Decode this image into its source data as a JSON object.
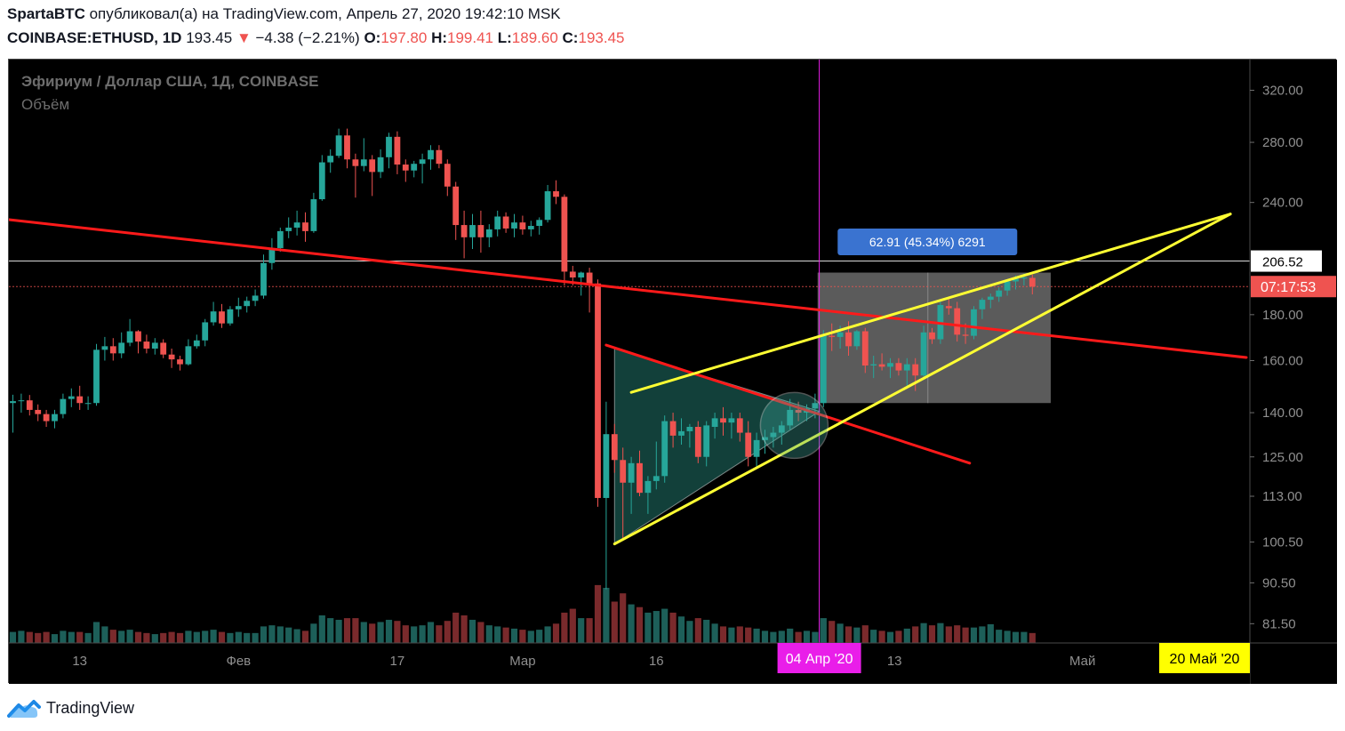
{
  "header": {
    "author": "SpartaBTC",
    "published_text": "опубликовал(а) на TradingView.com, Апрель 27, 2020 19:42:10 MSK",
    "symbol": "COINBASE:ETHUSD, 1D",
    "last": "193.45",
    "change_arrow": "▼",
    "change": "−4.38 (−2.21%)",
    "o_label": "O:",
    "o": "197.80",
    "h_label": "H:",
    "h": "199.41",
    "l_label": "L:",
    "l": "189.60",
    "c_label": "C:",
    "c": "193.45"
  },
  "legend": {
    "title": "Эфириум / Доллар США, 1Д, COINBASE",
    "volume": "Объём"
  },
  "footer": {
    "brand": "TradingView"
  },
  "colors": {
    "up": "#26a69a",
    "down": "#ef5350",
    "vol_up": "#1d5f59",
    "vol_down": "#7a2a2c",
    "trend_red": "#ff1a1a",
    "trend_yellow": "#ffff33",
    "box": "#6b6b6b",
    "date_mark": "#e91ee9",
    "measure": "#3a73d0"
  },
  "chart_data": {
    "type": "candlestick",
    "symbol": "COINBASE:ETHUSD",
    "interval": "1D",
    "y_scale": "log",
    "ylim": [
      79,
      330
    ],
    "y_ticks": [
      "320.00",
      "280.00",
      "240.00",
      "206.52",
      "180.00",
      "160.00",
      "140.00",
      "125.00",
      "113.00",
      "100.50",
      "90.50",
      "81.50"
    ],
    "x_ticks": [
      "13",
      "Фев",
      "17",
      "Мар",
      "16",
      "04 Апр '20",
      "13",
      "Май",
      "20 Май '20"
    ],
    "current_price_label": "07:17:53",
    "measure_label": "62.91 (45.34%) 6291",
    "levels": {
      "horizontal_line": 206.52,
      "last_price": 193.45
    },
    "start_date": "2020-01-05",
    "candles": [
      [
        143.5,
        146.6,
        133.0,
        144.2,
        0.2
      ],
      [
        144.2,
        147.0,
        140.0,
        144.5,
        0.22
      ],
      [
        144.5,
        146.5,
        139.0,
        141.0,
        0.2
      ],
      [
        141.0,
        143.0,
        137.0,
        139.5,
        0.18
      ],
      [
        139.5,
        141.0,
        135.0,
        137.0,
        0.2
      ],
      [
        137.0,
        141.0,
        134.5,
        139.5,
        0.16
      ],
      [
        139.5,
        147.0,
        138.0,
        145.0,
        0.22
      ],
      [
        145.0,
        149.0,
        142.0,
        146.0,
        0.2
      ],
      [
        146.0,
        150.0,
        141.0,
        143.5,
        0.2
      ],
      [
        143.5,
        146.0,
        141.0,
        143.5,
        0.18
      ],
      [
        143.5,
        167.0,
        142.5,
        164.5,
        0.38
      ],
      [
        164.5,
        170.0,
        160.0,
        166.0,
        0.3
      ],
      [
        166.0,
        169.5,
        160.0,
        163.0,
        0.24
      ],
      [
        163.0,
        172.0,
        161.0,
        167.5,
        0.22
      ],
      [
        167.5,
        178.0,
        166.0,
        172.5,
        0.24
      ],
      [
        172.5,
        173.0,
        163.0,
        168.0,
        0.2
      ],
      [
        168.0,
        171.0,
        163.0,
        165.0,
        0.18
      ],
      [
        165.0,
        169.5,
        162.5,
        167.5,
        0.16
      ],
      [
        167.5,
        169.0,
        161.0,
        162.5,
        0.18
      ],
      [
        162.5,
        165.0,
        157.0,
        160.5,
        0.2
      ],
      [
        160.5,
        162.0,
        156.0,
        158.5,
        0.18
      ],
      [
        158.5,
        169.0,
        158.0,
        166.0,
        0.22
      ],
      [
        166.0,
        171.0,
        165.0,
        168.5,
        0.2
      ],
      [
        168.5,
        178.0,
        166.0,
        176.5,
        0.22
      ],
      [
        176.5,
        186.0,
        175.0,
        181.5,
        0.24
      ],
      [
        181.5,
        185.0,
        174.0,
        176.0,
        0.2
      ],
      [
        176.0,
        184.0,
        175.0,
        182.5,
        0.18
      ],
      [
        182.5,
        188.0,
        179.0,
        184.0,
        0.2
      ],
      [
        184.0,
        188.5,
        181.0,
        186.5,
        0.18
      ],
      [
        186.5,
        192.0,
        184.0,
        189.0,
        0.18
      ],
      [
        189.0,
        210.0,
        187.5,
        205.5,
        0.3
      ],
      [
        205.5,
        219.0,
        202.0,
        213.5,
        0.32
      ],
      [
        213.5,
        225.0,
        211.5,
        223.0,
        0.3
      ],
      [
        223.0,
        231.0,
        219.0,
        225.0,
        0.28
      ],
      [
        225.0,
        235.0,
        220.5,
        228.0,
        0.25
      ],
      [
        228.0,
        234.0,
        217.0,
        223.0,
        0.22
      ],
      [
        223.0,
        246.0,
        222.0,
        242.0,
        0.35
      ],
      [
        242.0,
        271.0,
        241.0,
        266.0,
        0.5
      ],
      [
        266.0,
        275.0,
        259.0,
        270.5,
        0.45
      ],
      [
        270.5,
        290.0,
        269.0,
        285.0,
        0.42
      ],
      [
        285.0,
        290.0,
        262.0,
        268.0,
        0.45
      ],
      [
        268.0,
        272.0,
        243.0,
        263.5,
        0.45
      ],
      [
        263.5,
        283.0,
        260.0,
        268.0,
        0.38
      ],
      [
        268.0,
        271.0,
        244.0,
        259.5,
        0.35
      ],
      [
        259.5,
        275.0,
        255.5,
        269.5,
        0.38
      ],
      [
        269.5,
        287.0,
        262.0,
        284.0,
        0.42
      ],
      [
        284.0,
        288.0,
        258.0,
        264.5,
        0.4
      ],
      [
        264.5,
        268.0,
        253.0,
        260.5,
        0.32
      ],
      [
        260.5,
        267.0,
        256.0,
        265.0,
        0.3
      ],
      [
        265.0,
        272.0,
        252.0,
        268.0,
        0.32
      ],
      [
        268.0,
        278.0,
        261.0,
        274.5,
        0.38
      ],
      [
        274.5,
        278.0,
        262.0,
        265.0,
        0.32
      ],
      [
        265.0,
        268.0,
        244.0,
        250.0,
        0.4
      ],
      [
        250.0,
        253.0,
        218.0,
        226.5,
        0.55
      ],
      [
        226.5,
        235.0,
        208.0,
        219.5,
        0.5
      ],
      [
        219.5,
        233.0,
        213.0,
        226.5,
        0.42
      ],
      [
        226.5,
        235.0,
        211.0,
        219.5,
        0.38
      ],
      [
        219.5,
        227.0,
        214.0,
        224.0,
        0.32
      ],
      [
        224.0,
        235.0,
        220.0,
        231.5,
        0.3
      ],
      [
        231.5,
        234.0,
        222.0,
        224.5,
        0.28
      ],
      [
        224.5,
        233.0,
        219.5,
        228.0,
        0.26
      ],
      [
        228.0,
        232.0,
        221.0,
        224.0,
        0.24
      ],
      [
        224.0,
        229.0,
        220.0,
        226.0,
        0.22
      ],
      [
        226.0,
        231.0,
        221.0,
        229.5,
        0.24
      ],
      [
        229.5,
        251.0,
        228.0,
        247.0,
        0.3
      ],
      [
        247.0,
        254.0,
        239.0,
        243.5,
        0.35
      ],
      [
        243.5,
        245.0,
        194.0,
        201.0,
        0.55
      ],
      [
        201.0,
        204.0,
        194.0,
        198.0,
        0.62
      ],
      [
        198.0,
        201.0,
        189.0,
        200.5,
        0.45
      ],
      [
        200.5,
        203.0,
        181.0,
        195.0,
        0.45
      ],
      [
        195.0,
        197.0,
        110.0,
        112.5,
        1.05
      ],
      [
        112.5,
        144.0,
        89.0,
        132.5,
        1.0
      ],
      [
        132.5,
        136.0,
        120.0,
        124.0,
        0.75
      ],
      [
        124.0,
        128.0,
        101.0,
        117.0,
        0.9
      ],
      [
        117.0,
        125.0,
        108.0,
        123.0,
        0.7
      ],
      [
        123.0,
        127.0,
        113.0,
        114.0,
        0.65
      ],
      [
        114.0,
        119.0,
        108.0,
        117.5,
        0.55
      ],
      [
        117.5,
        130.0,
        115.0,
        119.0,
        0.58
      ],
      [
        119.0,
        139.0,
        117.0,
        137.0,
        0.62
      ],
      [
        137.0,
        140.0,
        128.0,
        132.0,
        0.55
      ],
      [
        132.0,
        138.0,
        129.0,
        133.5,
        0.48
      ],
      [
        133.5,
        136.0,
        128.0,
        135.0,
        0.4
      ],
      [
        135.0,
        137.0,
        123.0,
        125.0,
        0.45
      ],
      [
        125.0,
        137.0,
        122.0,
        135.5,
        0.42
      ],
      [
        135.0,
        140.0,
        131.0,
        138.0,
        0.35
      ],
      [
        138.0,
        142.0,
        132.0,
        136.5,
        0.3
      ],
      [
        136.5,
        140.0,
        131.0,
        138.0,
        0.28
      ],
      [
        138.0,
        140.0,
        130.0,
        133.0,
        0.3
      ],
      [
        133.0,
        137.0,
        122.0,
        125.0,
        0.28
      ],
      [
        125.0,
        133.0,
        122.0,
        130.5,
        0.26
      ],
      [
        130.5,
        134.0,
        126.0,
        131.5,
        0.22
      ],
      [
        131.5,
        135.0,
        128.0,
        133.0,
        0.2
      ],
      [
        133.0,
        137.0,
        129.0,
        135.5,
        0.22
      ],
      [
        135.5,
        145.0,
        134.0,
        141.0,
        0.26
      ],
      [
        141.0,
        144.0,
        137.0,
        140.0,
        0.2
      ],
      [
        140.0,
        143.0,
        137.0,
        141.5,
        0.22
      ],
      [
        141.5,
        147.0,
        138.0,
        143.5,
        0.2
      ],
      [
        143.5,
        173.0,
        142.0,
        170.5,
        0.45
      ],
      [
        170.5,
        176.0,
        164.0,
        170.0,
        0.4
      ],
      [
        170.0,
        175.0,
        165.0,
        172.0,
        0.35
      ],
      [
        172.0,
        177.0,
        162.0,
        166.0,
        0.3
      ],
      [
        166.0,
        173.0,
        164.5,
        172.5,
        0.28
      ],
      [
        172.5,
        174.0,
        155.0,
        158.0,
        0.32
      ],
      [
        158.0,
        162.0,
        153.0,
        158.5,
        0.24
      ],
      [
        158.5,
        163.0,
        156.0,
        157.5,
        0.22
      ],
      [
        157.5,
        161.0,
        153.0,
        159.0,
        0.2
      ],
      [
        159.0,
        161.0,
        154.0,
        156.0,
        0.22
      ],
      [
        156.0,
        161.0,
        150.0,
        158.5,
        0.26
      ],
      [
        158.5,
        161.0,
        148.0,
        154.0,
        0.3
      ],
      [
        154.0,
        175.0,
        153.0,
        172.0,
        0.36
      ],
      [
        172.0,
        174.0,
        167.0,
        169.0,
        0.32
      ],
      [
        169.0,
        186.0,
        167.0,
        184.5,
        0.36
      ],
      [
        184.0,
        188.0,
        180.0,
        183.0,
        0.3
      ],
      [
        183.0,
        186.0,
        168.0,
        171.0,
        0.32
      ],
      [
        171.0,
        176.0,
        167.0,
        170.5,
        0.28
      ],
      [
        170.5,
        184.0,
        169.0,
        182.5,
        0.28
      ],
      [
        182.5,
        188.0,
        178.0,
        187.0,
        0.3
      ],
      [
        187.0,
        190.0,
        183.0,
        188.5,
        0.34
      ],
      [
        188.5,
        193.0,
        186.0,
        191.5,
        0.24
      ],
      [
        191.5,
        197.0,
        189.0,
        196.0,
        0.22
      ],
      [
        196.0,
        199.0,
        192.0,
        197.5,
        0.2
      ],
      [
        197.5,
        200.0,
        194.0,
        198.0,
        0.2
      ],
      [
        197.8,
        199.41,
        189.6,
        193.45,
        0.18
      ]
    ]
  }
}
